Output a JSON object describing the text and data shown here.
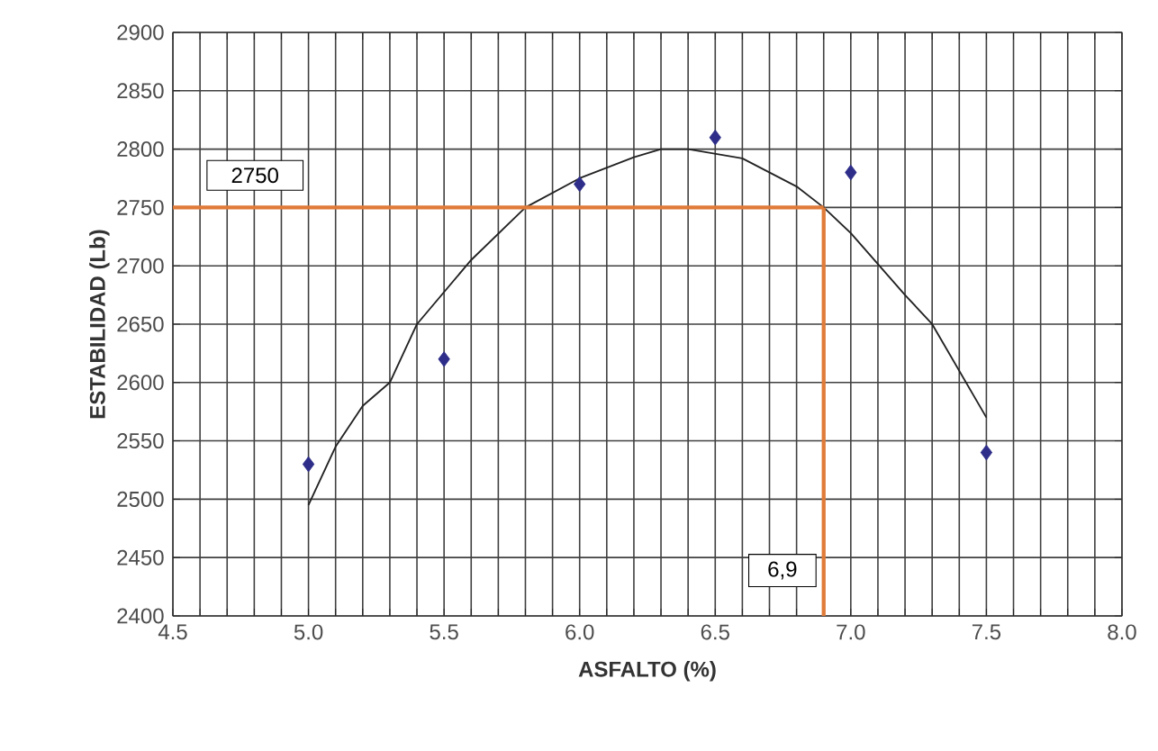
{
  "chart_data": {
    "type": "scatter",
    "xlabel": "ASFALTO (%)",
    "ylabel": "ESTABILIDAD (Lb)",
    "series": [
      {
        "color": "#2e2e8a",
        "marker": "diamond",
        "x": [
          5.0,
          5.5,
          6.0,
          6.5,
          7.0,
          7.5
        ],
        "values": [
          2530,
          2620,
          2770,
          2810,
          2780,
          2540
        ]
      },
      {
        "type": "line",
        "color": "#222222",
        "marker": "none",
        "line_style": "solid",
        "x": [
          5.0,
          5.1,
          5.2,
          5.3,
          5.4,
          5.6,
          5.8,
          6.0,
          6.2,
          6.3,
          6.4,
          6.6,
          6.8,
          6.9,
          7.0,
          7.2,
          7.3,
          7.4,
          7.5
        ],
        "values": [
          2495,
          2545,
          2580,
          2600,
          2650,
          2705,
          2750,
          2775,
          2793,
          2800,
          2800,
          2792,
          2768,
          2750,
          2728,
          2675,
          2650,
          2610,
          2570
        ]
      }
    ],
    "ref_lines": [
      {
        "axis": "y",
        "value": 2750,
        "label": "2750",
        "color": "#e07b39"
      },
      {
        "axis": "x",
        "value": 6.9,
        "label": "6,9",
        "color": "#e07b39"
      }
    ],
    "xlim": [
      4.5,
      8.0
    ],
    "ylim": [
      2400,
      2900
    ],
    "xticks": [
      {
        "value": 4.5,
        "label": "4.5"
      },
      {
        "value": 4.6,
        "label": null
      },
      {
        "value": 4.7,
        "label": null
      },
      {
        "value": 4.8,
        "label": null
      },
      {
        "value": 4.9,
        "label": null
      },
      {
        "value": 5.0,
        "label": "5.0"
      },
      {
        "value": 5.1,
        "label": null
      },
      {
        "value": 5.2,
        "label": null
      },
      {
        "value": 5.3,
        "label": null
      },
      {
        "value": 5.4,
        "label": null
      },
      {
        "value": 5.5,
        "label": "5.5"
      },
      {
        "value": 5.6,
        "label": null
      },
      {
        "value": 5.7,
        "label": null
      },
      {
        "value": 5.8,
        "label": null
      },
      {
        "value": 5.9,
        "label": null
      },
      {
        "value": 6.0,
        "label": "6.0"
      },
      {
        "value": 6.1,
        "label": null
      },
      {
        "value": 6.2,
        "label": null
      },
      {
        "value": 6.3,
        "label": null
      },
      {
        "value": 6.4,
        "label": null
      },
      {
        "value": 6.5,
        "label": "6.5"
      },
      {
        "value": 6.6,
        "label": null
      },
      {
        "value": 6.7,
        "label": null
      },
      {
        "value": 6.8,
        "label": null
      },
      {
        "value": 6.9,
        "label": null
      },
      {
        "value": 7.0,
        "label": "7.0"
      },
      {
        "value": 7.1,
        "label": null
      },
      {
        "value": 7.2,
        "label": null
      },
      {
        "value": 7.3,
        "label": null
      },
      {
        "value": 7.4,
        "label": null
      },
      {
        "value": 7.5,
        "label": "7.5"
      },
      {
        "value": 7.6,
        "label": null
      },
      {
        "value": 7.7,
        "label": null
      },
      {
        "value": 7.8,
        "label": null
      },
      {
        "value": 7.9,
        "label": null
      },
      {
        "value": 8.0,
        "label": "8.0"
      }
    ],
    "yticks": [
      2400,
      2450,
      2500,
      2550,
      2600,
      2650,
      2700,
      2750,
      2800,
      2850,
      2900
    ],
    "grid": true
  }
}
